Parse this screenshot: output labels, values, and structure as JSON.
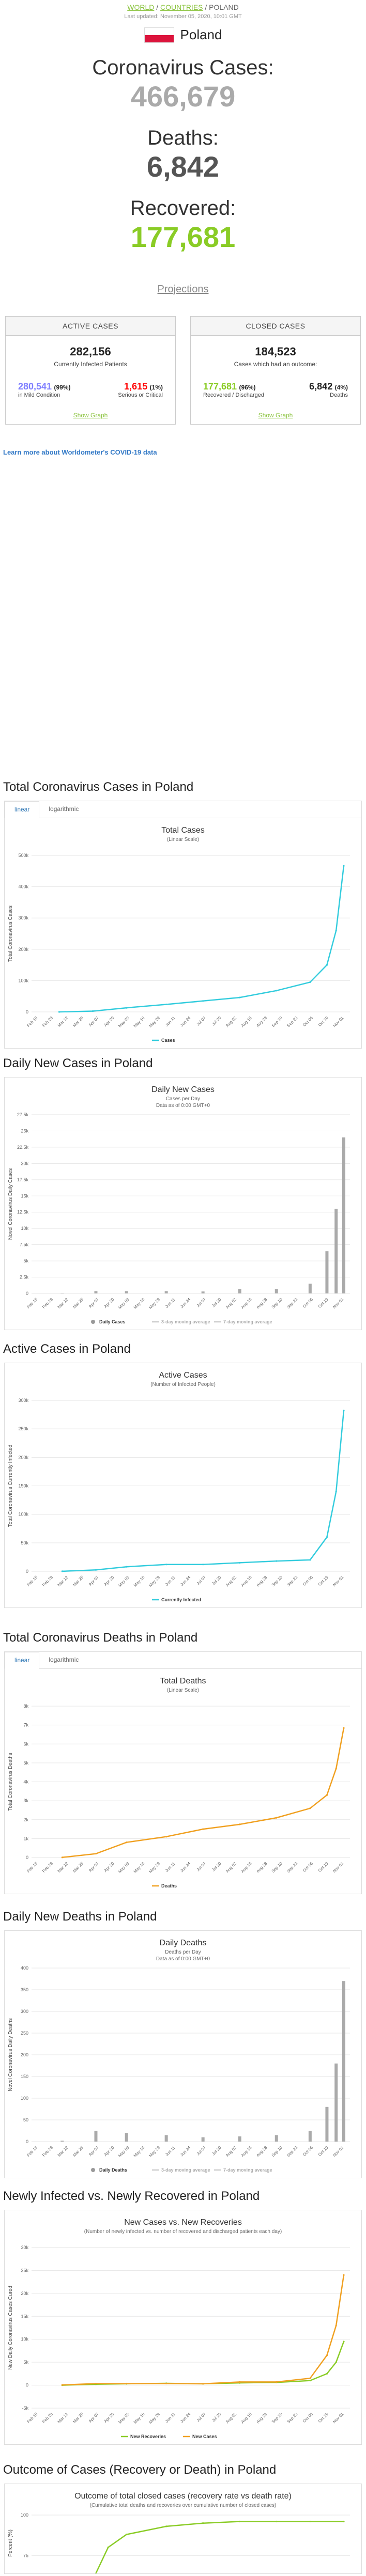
{
  "breadcrumb": {
    "world": "WORLD",
    "countries": "COUNTRIES",
    "country": "POLAND"
  },
  "last_updated": "Last updated: November 05, 2020, 10:01 GMT",
  "country_name": "Poland",
  "counters": [
    {
      "title": "Coronavirus Cases:",
      "value": "466,679",
      "color": "#aaaaaa"
    },
    {
      "title": "Deaths:",
      "value": "6,842",
      "color": "#555555"
    },
    {
      "title": "Recovered:",
      "value": "177,681",
      "color": "#8acc26"
    }
  ],
  "projections_link": "Projections",
  "active_panel": {
    "header": "ACTIVE CASES",
    "total": "282,156",
    "total_label": "Currently Infected Patients",
    "mild": "280,541",
    "mild_pct": "(99%)",
    "mild_label": "in Mild Condition",
    "serious": "1,615",
    "serious_pct": "(1%)",
    "serious_label": "Serious or Critical",
    "show_graph": "Show Graph",
    "mild_color": "#8080ff",
    "serious_color": "#ff0000"
  },
  "closed_panel": {
    "header": "CLOSED CASES",
    "total": "184,523",
    "total_label": "Cases which had an outcome:",
    "recovered": "177,681",
    "recovered_pct": "(96%)",
    "recovered_label": "Recovered / Discharged",
    "deaths": "6,842",
    "deaths_pct": "(4%)",
    "deaths_label": "Deaths",
    "show_graph": "Show Graph",
    "recovered_color": "#8acc26",
    "deaths_color": "#222222"
  },
  "learn_more": "Learn more about Worldometer's COVID-19 data",
  "tabs": {
    "linear": "linear",
    "logarithmic": "logarithmic"
  },
  "charts": [
    {
      "section_title": "Total Coronavirus Cases in Poland",
      "has_tabs": true,
      "title": "Total Cases",
      "subtitle": "(Linear Scale)",
      "subtitle2": "",
      "ylabel": "Total Coronavirus Cases",
      "yticks": [
        "0",
        "100k",
        "200k",
        "300k",
        "400k",
        "500k"
      ],
      "xticks": [
        "Feb 15",
        "Feb 28",
        "Mar 12",
        "Mar 25",
        "Apr 07",
        "Apr 20",
        "May 03",
        "May 16",
        "May 29",
        "Jun 11",
        "Jun 24",
        "Jul 07",
        "Jul 20",
        "Aug 02",
        "Aug 15",
        "Aug 28",
        "Sep 10",
        "Sep 23",
        "Oct 06",
        "Oct 19",
        "Nov 01"
      ],
      "legend": [
        {
          "label": "Cases",
          "color": "#33ccdd",
          "kind": "line"
        }
      ]
    },
    {
      "section_title": "Daily New Cases in Poland",
      "has_tabs": false,
      "title": "Daily New Cases",
      "subtitle": "Cases per Day",
      "subtitle2": "Data as of 0:00 GMT+0",
      "ylabel": "Novel Coronavirus Daily Cases",
      "yticks": [
        "0",
        "2.5k",
        "5k",
        "7.5k",
        "10k",
        "12.5k",
        "15k",
        "17.5k",
        "20k",
        "22.5k",
        "25k",
        "27.5k"
      ],
      "xticks": [
        "Feb 15",
        "Feb 28",
        "Mar 12",
        "Mar 25",
        "Apr 07",
        "Apr 20",
        "May 03",
        "May 16",
        "May 29",
        "Jun 11",
        "Jun 24",
        "Jul 07",
        "Jul 20",
        "Aug 02",
        "Aug 15",
        "Aug 28",
        "Sep 10",
        "Sep 23",
        "Oct 06",
        "Oct 19",
        "Nov 01"
      ],
      "legend": [
        {
          "label": "Daily Cases",
          "color": "#999999",
          "kind": "dot"
        },
        {
          "label": "3-day moving average",
          "color": "#cccccc",
          "kind": "line"
        },
        {
          "label": "7-day moving average",
          "color": "#cccccc",
          "kind": "line"
        }
      ]
    },
    {
      "section_title": "Active Cases in Poland",
      "has_tabs": false,
      "title": "Active Cases",
      "subtitle": "(Number of Infected People)",
      "subtitle2": "",
      "ylabel": "Total Coronavirus Currently Infected",
      "yticks": [
        "0",
        "50k",
        "100k",
        "150k",
        "200k",
        "250k",
        "300k"
      ],
      "xticks": [
        "Feb 15",
        "Feb 28",
        "Mar 12",
        "Mar 25",
        "Apr 07",
        "Apr 20",
        "May 03",
        "May 16",
        "May 29",
        "Jun 11",
        "Jun 24",
        "Jul 07",
        "Jul 20",
        "Aug 02",
        "Aug 15",
        "Aug 28",
        "Sep 10",
        "Sep 23",
        "Oct 06",
        "Oct 19",
        "Nov 01"
      ],
      "legend": [
        {
          "label": "Currently Infected",
          "color": "#33ccdd",
          "kind": "line"
        }
      ]
    },
    {
      "section_title": "Total Coronavirus Deaths in Poland",
      "has_tabs": true,
      "title": "Total Deaths",
      "subtitle": "(Linear Scale)",
      "subtitle2": "",
      "ylabel": "Total Coronavirus Deaths",
      "yticks": [
        "0",
        "1k",
        "2k",
        "3k",
        "4k",
        "5k",
        "6k",
        "7k",
        "8k"
      ],
      "xticks": [
        "Feb 15",
        "Feb 28",
        "Mar 12",
        "Mar 25",
        "Apr 07",
        "Apr 20",
        "May 03",
        "May 16",
        "May 29",
        "Jun 11",
        "Jun 24",
        "Jul 07",
        "Jul 20",
        "Aug 02",
        "Aug 15",
        "Aug 28",
        "Sep 10",
        "Sep 23",
        "Oct 06",
        "Oct 19",
        "Nov 01"
      ],
      "legend": [
        {
          "label": "Deaths",
          "color": "#f0a020",
          "kind": "line"
        }
      ]
    },
    {
      "section_title": "Daily New Deaths in Poland",
      "has_tabs": false,
      "title": "Daily Deaths",
      "subtitle": "Deaths per Day",
      "subtitle2": "Data as of 0:00 GMT+0",
      "ylabel": "Novel Coronavirus Daily Deaths",
      "yticks": [
        "0",
        "50",
        "100",
        "150",
        "200",
        "250",
        "300",
        "350",
        "400"
      ],
      "xticks": [
        "Feb 15",
        "Feb 28",
        "Mar 12",
        "Mar 25",
        "Apr 07",
        "Apr 20",
        "May 03",
        "May 16",
        "May 29",
        "Jun 11",
        "Jun 24",
        "Jul 07",
        "Jul 20",
        "Aug 02",
        "Aug 15",
        "Aug 28",
        "Sep 10",
        "Sep 23",
        "Oct 06",
        "Oct 19",
        "Nov 01"
      ],
      "legend": [
        {
          "label": "Daily Deaths",
          "color": "#999999",
          "kind": "dot"
        },
        {
          "label": "3-day moving average",
          "color": "#cccccc",
          "kind": "line"
        },
        {
          "label": "7-day moving average",
          "color": "#cccccc",
          "kind": "line"
        }
      ]
    },
    {
      "section_title": "Newly Infected vs. Newly Recovered in Poland",
      "has_tabs": false,
      "title": "New Cases vs. New Recoveries",
      "subtitle": "(Number of newly infected vs. number of recovered and discharged patients each day)",
      "subtitle2": "",
      "ylabel": "New Daily Coronavirus Cases Cured",
      "yticks": [
        "-5k",
        "0",
        "5k",
        "10k",
        "15k",
        "20k",
        "25k",
        "30k"
      ],
      "xticks": [
        "Feb 15",
        "Feb 28",
        "Mar 12",
        "Mar 25",
        "Apr 07",
        "Apr 20",
        "May 03",
        "May 16",
        "May 29",
        "Jun 11",
        "Jun 24",
        "Jul 07",
        "Jul 20",
        "Aug 02",
        "Aug 15",
        "Aug 28",
        "Sep 10",
        "Sep 23",
        "Oct 06",
        "Oct 19",
        "Nov 01"
      ],
      "legend": [
        {
          "label": "New Recoveries",
          "color": "#8acc26",
          "kind": "line"
        },
        {
          "label": "New Cases",
          "color": "#f0a020",
          "kind": "line"
        }
      ]
    },
    {
      "section_title": "Outcome of Cases (Recovery or Death) in Poland",
      "has_tabs": false,
      "title": "Outcome of total closed cases (recovery rate vs death rate)",
      "subtitle": "(Cumulative total deaths and recoveries over cumulative number of closed cases)",
      "subtitle2": "",
      "ylabel": "Percent (%)",
      "yticks": [
        "0",
        "25",
        "50",
        "75",
        "100"
      ],
      "xticks": [
        "Feb 15",
        "Feb 28",
        "Mar 12",
        "Mar 25",
        "Apr 07",
        "Apr 20",
        "May 03",
        "May 16",
        "May 29",
        "Jun 11",
        "Jun 24",
        "Jul 07",
        "Jul 20",
        "Aug 02",
        "Aug 15",
        "Aug 28",
        "Sep 10",
        "Sep 23",
        "Oct 06",
        "Oct 19",
        "Nov 01"
      ],
      "legend": [
        {
          "label": "Death Rate",
          "color": "#f0a020",
          "kind": "line"
        },
        {
          "label": "Recovery Rate",
          "color": "#8acc26",
          "kind": "line"
        }
      ]
    }
  ],
  "chart_data": [
    {
      "type": "line",
      "title": "Total Cases",
      "x": [
        "Mar 04",
        "Apr 01",
        "May 01",
        "Jun 01",
        "Jul 01",
        "Aug 01",
        "Sep 01",
        "Oct 01",
        "Oct 15",
        "Oct 25",
        "Nov 04"
      ],
      "series": [
        {
          "name": "Cases",
          "values": [
            1,
            2500,
            13000,
            24000,
            35000,
            46000,
            68000,
            95000,
            150000,
            260000,
            466679
          ]
        }
      ],
      "ylim": [
        0,
        500000
      ]
    },
    {
      "type": "bar",
      "title": "Daily New Cases",
      "x": [
        "Mar",
        "Apr",
        "May",
        "Jun",
        "Jul",
        "Aug",
        "Sep",
        "Oct 01",
        "Oct 15",
        "Oct 25",
        "Nov 04"
      ],
      "series": [
        {
          "name": "Daily Cases",
          "values": [
            50,
            350,
            350,
            350,
            300,
            700,
            700,
            1500,
            6500,
            13000,
            24000
          ]
        }
      ],
      "ylim": [
        0,
        27500
      ]
    },
    {
      "type": "line",
      "title": "Active Cases",
      "x": [
        "Mar",
        "Apr",
        "May",
        "Jun",
        "Jul",
        "Aug",
        "Sep",
        "Oct 01",
        "Oct 15",
        "Oct 25",
        "Nov 04"
      ],
      "series": [
        {
          "name": "Currently Infected",
          "values": [
            100,
            2500,
            8000,
            12000,
            12000,
            15000,
            18000,
            20000,
            60000,
            140000,
            282156
          ]
        }
      ],
      "ylim": [
        0,
        300000
      ]
    },
    {
      "type": "line",
      "title": "Total Deaths",
      "x": [
        "Mar",
        "Apr",
        "May",
        "Jun",
        "Jul",
        "Aug",
        "Sep",
        "Oct 01",
        "Oct 15",
        "Oct 25",
        "Nov 04"
      ],
      "series": [
        {
          "name": "Deaths",
          "values": [
            5,
            200,
            800,
            1100,
            1500,
            1750,
            2100,
            2600,
            3300,
            4700,
            6842
          ]
        }
      ],
      "ylim": [
        0,
        8000
      ]
    },
    {
      "type": "bar",
      "title": "Daily Deaths",
      "x": [
        "Mar",
        "Apr",
        "May",
        "Jun",
        "Jul",
        "Aug",
        "Sep",
        "Oct 01",
        "Oct 15",
        "Oct 25",
        "Nov 04"
      ],
      "series": [
        {
          "name": "Daily Deaths",
          "values": [
            2,
            25,
            20,
            15,
            10,
            12,
            15,
            25,
            80,
            180,
            370
          ]
        }
      ],
      "ylim": [
        0,
        400
      ]
    },
    {
      "type": "line",
      "title": "New Cases vs. New Recoveries",
      "x": [
        "Mar",
        "Apr",
        "May",
        "Jun",
        "Jul",
        "Aug",
        "Sep",
        "Oct 01",
        "Oct 15",
        "Oct 25",
        "Nov 04"
      ],
      "series": [
        {
          "name": "New Recoveries",
          "values": [
            0,
            200,
            300,
            400,
            300,
            500,
            600,
            1000,
            2500,
            5000,
            9500
          ]
        },
        {
          "name": "New Cases",
          "values": [
            50,
            350,
            350,
            350,
            300,
            700,
            700,
            1500,
            6500,
            13000,
            24000
          ]
        }
      ],
      "ylim": [
        -5000,
        30000
      ]
    },
    {
      "type": "line",
      "title": "Outcome of total closed cases (recovery rate vs death rate)",
      "x": [
        "Mar 20",
        "Apr 01",
        "Apr 15",
        "May 01",
        "Jun 01",
        "Jul 01",
        "Aug 01",
        "Sep 01",
        "Oct 01",
        "Nov 04"
      ],
      "series": [
        {
          "name": "Death Rate",
          "values": [
            60,
            40,
            20,
            12,
            7,
            5,
            4,
            4,
            4,
            4
          ]
        },
        {
          "name": "Recovery Rate",
          "values": [
            40,
            60,
            80,
            88,
            93,
            95,
            96,
            96,
            96,
            96
          ]
        }
      ],
      "ylim": [
        0,
        100
      ]
    }
  ]
}
